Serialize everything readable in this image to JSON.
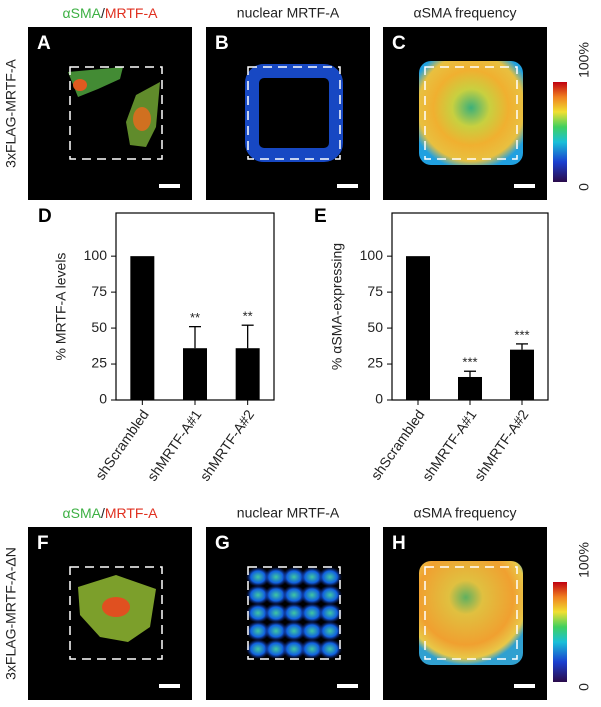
{
  "figure": {
    "row_labels": [
      "3xFLAG-MRTF-A",
      "3xFLAG-MRTF-A-ΔN"
    ],
    "merge_title": [
      "αSMA",
      "/",
      "MRTF-A"
    ],
    "nuclear_title": "nuclear MRTF-A",
    "frequency_title": "αSMA  frequency",
    "panel_labels": [
      "A",
      "B",
      "C",
      "F",
      "G",
      "H"
    ],
    "colorbar_labels": [
      "100%",
      "0"
    ]
  },
  "chart_data": [
    {
      "type": "bar",
      "label": "D",
      "y_label": "% MRTF-A levels",
      "categories": [
        "shScrambled",
        "shMRTF-A#1",
        "shMRTF-A#2"
      ],
      "values": [
        100,
        36,
        36
      ],
      "errors": [
        null,
        15,
        16
      ],
      "annotations": [
        null,
        "**",
        "**"
      ],
      "color": "#000000",
      "ylim": [
        0,
        130
      ],
      "yticks": [
        0,
        25,
        50,
        75,
        100
      ]
    },
    {
      "type": "bar",
      "label": "E",
      "y_label": "% αSMA-expressing",
      "categories": [
        "shScrambled",
        "shMRTF-A#1",
        "shMRTF-A#2"
      ],
      "values": [
        100,
        16,
        35
      ],
      "errors": [
        null,
        4,
        4
      ],
      "annotations": [
        null,
        "***",
        "***"
      ],
      "color": "#000000",
      "ylim": [
        0,
        130
      ],
      "yticks": [
        0,
        25,
        50,
        75,
        100
      ]
    }
  ]
}
